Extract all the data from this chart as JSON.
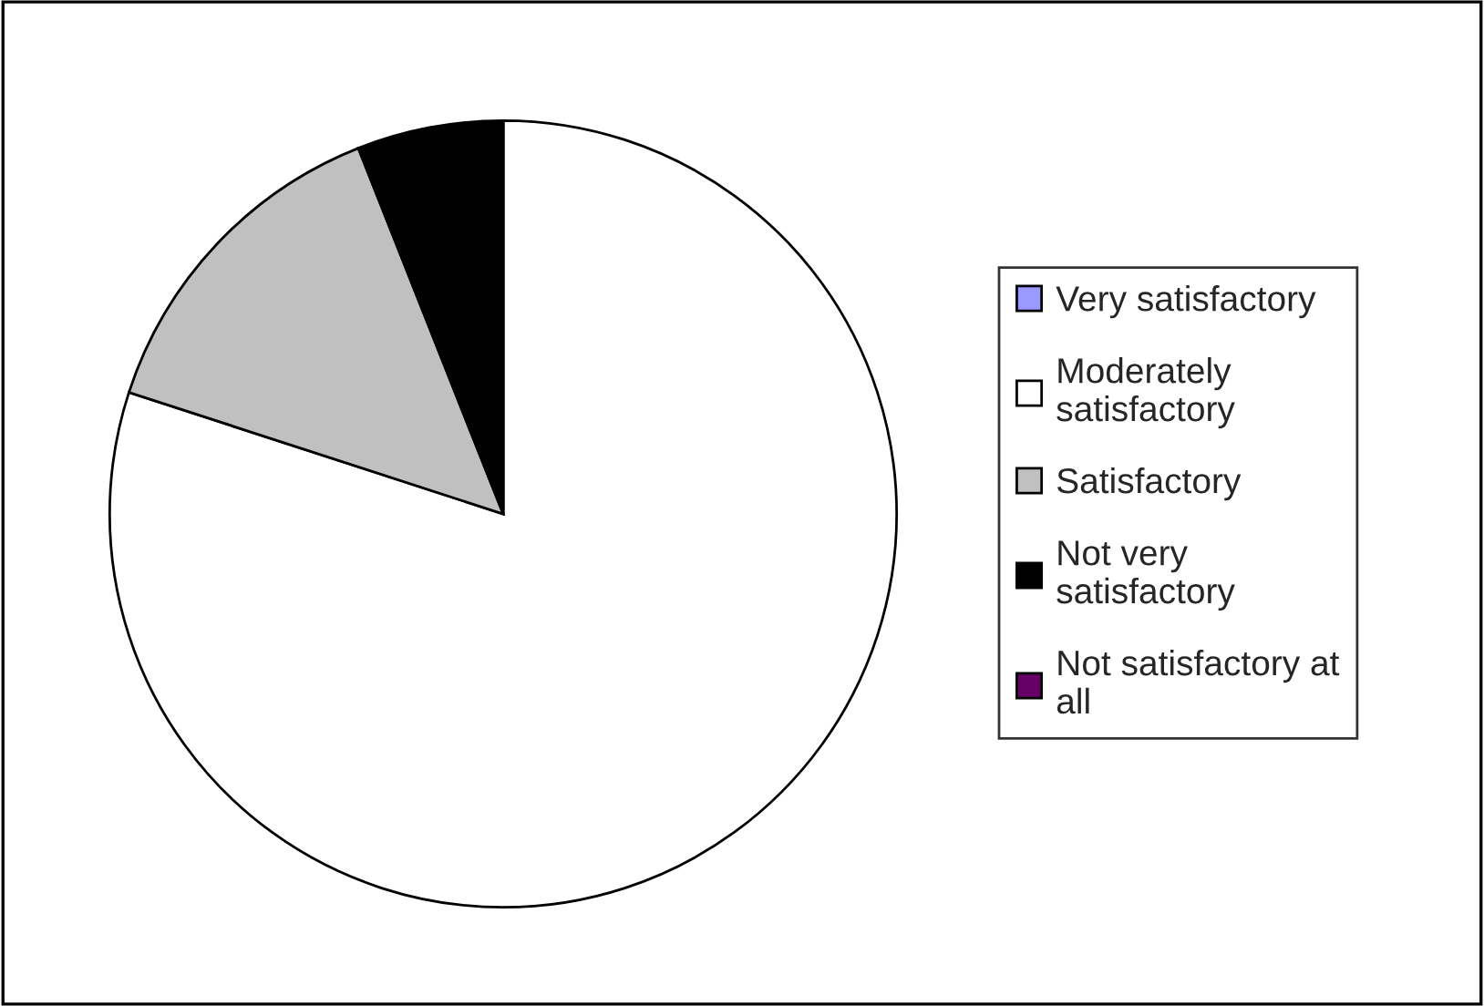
{
  "chart_data": {
    "type": "pie",
    "categories": [
      "Very satisfactory",
      "Moderately satisfactory",
      "Satisfactory",
      "Not very satisfactory",
      "Not satisfactory at all"
    ],
    "values": [
      0,
      80,
      14,
      6,
      0
    ],
    "colors": [
      "#9999ff",
      "#ffffff",
      "#c0c0c0",
      "#000000",
      "#660066"
    ],
    "legend": "right"
  }
}
